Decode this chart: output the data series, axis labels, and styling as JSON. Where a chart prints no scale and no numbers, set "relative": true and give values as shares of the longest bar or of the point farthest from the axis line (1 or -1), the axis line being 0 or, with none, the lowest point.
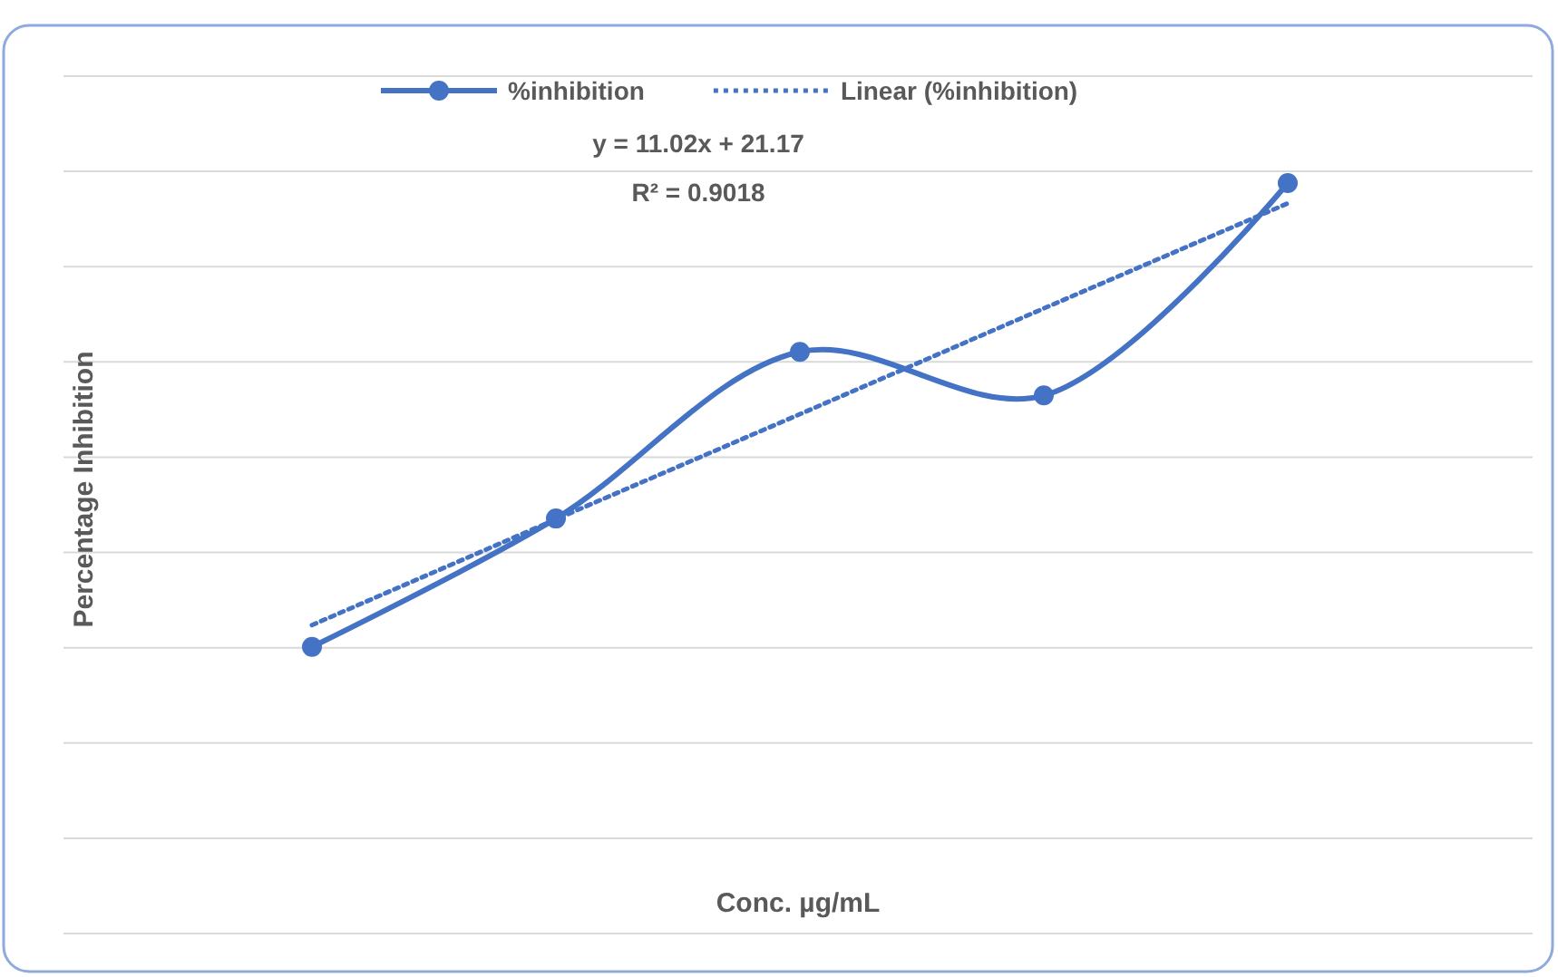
{
  "chart_data": {
    "type": "line",
    "relative": true,
    "categories": [
      null,
      null,
      null,
      null,
      null
    ],
    "series": [
      {
        "name": "%inhibition",
        "color": "#4472c4",
        "values": [
          0.382,
          0.553,
          0.775,
          0.717,
          1.0
        ],
        "marker": "circle",
        "line_style": "solid"
      },
      {
        "name": "Linear (%inhibition)",
        "color": "#4472c4",
        "values": [
          0.411,
          0.552,
          0.692,
          0.833,
          0.973
        ],
        "marker": "none",
        "line_style": "dotted"
      }
    ],
    "xlabel": "Conc. µg/mL",
    "ylabel": "Percentage Inhibition",
    "annotations": [
      "y = 11.02x + 21.17",
      "R² = 0.9018"
    ],
    "grid": "y",
    "legend": "top"
  }
}
